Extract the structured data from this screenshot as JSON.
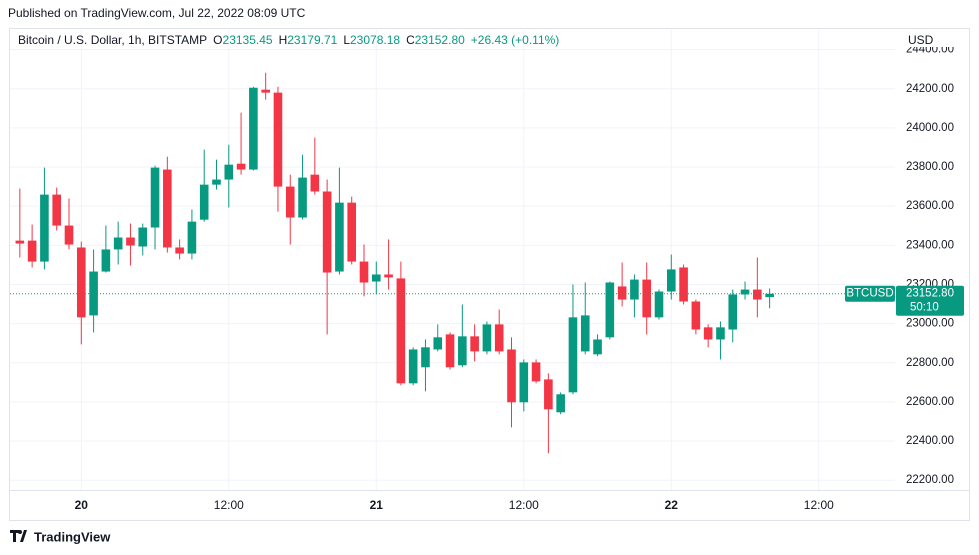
{
  "header": {
    "published": "Published on TradingView.com, Jul 22, 2022 08:09 UTC",
    "brand": "TradingView"
  },
  "chart_data": {
    "type": "candlestick",
    "title": "Bitcoin / U.S. Dollar, 1h, BITSTAMP",
    "ohlc_letters": [
      "O",
      "H",
      "L",
      "C"
    ],
    "legend_values": [
      "23135.45",
      "23179.71",
      "23078.18",
      "23152.80"
    ],
    "change": "+26.43 (+0.11%)",
    "currency": "USD",
    "symbol": "BTCUSD",
    "last_price_label": "23152.80",
    "countdown": "50:10",
    "up_color": "#089981",
    "down_color": "#f23645",
    "grid": true,
    "open": [
      23424,
      23424,
      23317,
      23659,
      23501,
      23389,
      23042,
      23266,
      23379,
      23440,
      23394,
      23491,
      23787,
      23389,
      23358,
      23531,
      23710,
      23736,
      23817,
      23787,
      24195,
      24180,
      23700,
      23542,
      23761,
      23675,
      23266,
      23618,
      23317,
      23215,
      23251,
      23231,
      22695,
      22777,
      22868,
      22945,
      22787,
      22935,
      22858,
      22996,
      22868,
      22598,
      22802,
      22715,
      22547,
      22649,
      22858,
      22843,
      22930,
      23190,
      23123,
      23225,
      23032,
      23164,
      23287,
      23113,
      22981,
      22919,
      22970,
      23149,
      23174,
      23135.45
    ],
    "high": [
      23690,
      23506,
      23797,
      23695,
      23639,
      23419,
      23379,
      23501,
      23521,
      23511,
      23511,
      23807,
      23853,
      23430,
      23583,
      23889,
      23838,
      23914,
      24078,
      24210,
      24282,
      24210,
      23761,
      23863,
      23950,
      23736,
      23797,
      23649,
      23404,
      23317,
      23430,
      23317,
      22879,
      22919,
      22996,
      22955,
      23098,
      22996,
      23011,
      23072,
      22930,
      22817,
      22817,
      22746,
      22649,
      23200,
      23210,
      22945,
      23215,
      23312,
      23251,
      23312,
      23174,
      23353,
      23302,
      23123,
      22996,
      23011,
      23174,
      23215,
      23338,
      23179.71
    ],
    "low": [
      23338,
      23287,
      23277,
      23476,
      23379,
      22894,
      22955,
      23261,
      23302,
      23297,
      23348,
      23379,
      23363,
      23328,
      23328,
      23521,
      23685,
      23593,
      23761,
      23782,
      24144,
      23572,
      23404,
      23532,
      23659,
      22945,
      23251,
      23302,
      23139,
      23149,
      23174,
      22685,
      22685,
      22654,
      22858,
      22766,
      22777,
      22807,
      22843,
      22843,
      22470,
      22552,
      22695,
      22338,
      22537,
      22639,
      22843,
      22833,
      22919,
      23088,
      23032,
      22945,
      23021,
      23123,
      23098,
      22945,
      22879,
      22817,
      22904,
      23123,
      23032,
      23078.18
    ],
    "close": [
      23409,
      23317,
      23659,
      23501,
      23404,
      23032,
      23266,
      23379,
      23440,
      23399,
      23491,
      23797,
      23389,
      23358,
      23521,
      23710,
      23736,
      23812,
      23787,
      24205,
      24180,
      23700,
      23542,
      23746,
      23675,
      23261,
      23618,
      23317,
      23210,
      23251,
      23236,
      22695,
      22868,
      22879,
      22930,
      22777,
      22935,
      22858,
      22996,
      22858,
      22598,
      22802,
      22705,
      22562,
      22639,
      23032,
      23042,
      22919,
      23210,
      23123,
      23225,
      23032,
      23164,
      23277,
      23113,
      22970,
      22919,
      22981,
      23149,
      23174,
      23123,
      23152.8
    ],
    "xlim": [
      -0.8,
      71.2
    ],
    "xticks": [
      {
        "value": 5,
        "label": "20"
      },
      {
        "value": 17,
        "label": "12:00"
      },
      {
        "value": 29,
        "label": "21"
      },
      {
        "value": 41,
        "label": "12:00"
      },
      {
        "value": 53,
        "label": "22"
      },
      {
        "value": 65,
        "label": "12:00"
      }
    ],
    "ylim": [
      22150,
      24500
    ],
    "yticks": [
      {
        "value": 22200,
        "label": "22200.00"
      },
      {
        "value": 22400,
        "label": "22400.00"
      },
      {
        "value": 22600,
        "label": "22600.00"
      },
      {
        "value": 22800,
        "label": "22800.00"
      },
      {
        "value": 23000,
        "label": "23000.00"
      },
      {
        "value": 23200,
        "label": "23200.00"
      },
      {
        "value": 23400,
        "label": "23400.00"
      },
      {
        "value": 23600,
        "label": "23600.00"
      },
      {
        "value": 23800,
        "label": "23800.00"
      },
      {
        "value": 24000,
        "label": "24000.00"
      },
      {
        "value": 24200,
        "label": "24200.00"
      },
      {
        "value": 24400,
        "label": "24400.00"
      }
    ]
  }
}
